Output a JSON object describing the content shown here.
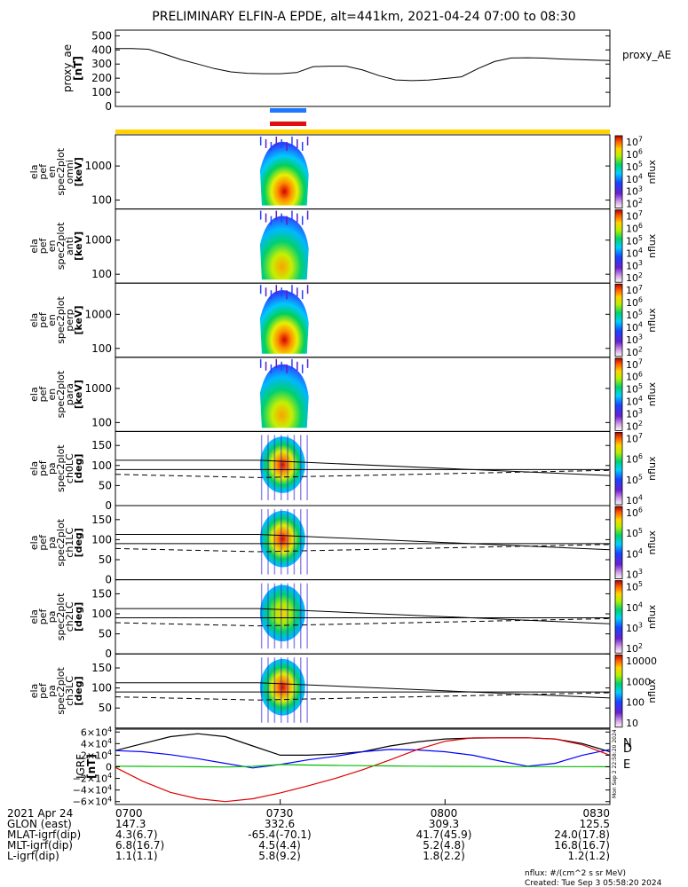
{
  "title": "PRELIMINARY ELFIN-A EPDE, alt=441km, 2021-04-24 07:00 to 08:30",
  "colors": {
    "axis": "#000000",
    "blue_bar": "#1e78ff",
    "red_bar": "#e01010",
    "yellow_bar": "#ffd200"
  },
  "chart_data": [
    {
      "type": "line",
      "panel": "proxy_ae",
      "ylabel_lines": [
        "proxy_ae",
        "[nT]"
      ],
      "legend": "proxy_AE",
      "yticks": [
        "500",
        "400",
        "300",
        "200",
        "100",
        "0"
      ],
      "ylim": [
        0,
        540
      ],
      "x_minutes": [
        0,
        3,
        6,
        9,
        12,
        15,
        18,
        21,
        24,
        27,
        30,
        33,
        36,
        39,
        42,
        45,
        48,
        51,
        54,
        57,
        60,
        63,
        66,
        69,
        72,
        75,
        78,
        81,
        84,
        87,
        90
      ],
      "values": [
        410,
        410,
        405,
        370,
        330,
        300,
        268,
        245,
        235,
        232,
        232,
        240,
        282,
        285,
        285,
        258,
        218,
        188,
        183,
        187,
        198,
        210,
        268,
        318,
        343,
        345,
        342,
        336,
        332,
        328,
        325
      ]
    },
    {
      "type": "heatmap",
      "panel": "en_omni",
      "ylabel_lines": [
        "ela",
        "pef",
        "en",
        "spec2plot",
        "omni",
        "[keV]"
      ],
      "yticks": [
        "1000",
        "100"
      ],
      "colorbar_ticks": [
        "10^7",
        "10^6",
        "10^5",
        "10^4",
        "10^3",
        "10^2"
      ],
      "colorbar_label": "nflux"
    },
    {
      "type": "heatmap",
      "panel": "en_anti",
      "ylabel_lines": [
        "ela",
        "pef",
        "en",
        "spec2plot",
        "anti",
        "[keV]"
      ],
      "yticks": [
        "1000",
        "100"
      ],
      "colorbar_ticks": [
        "10^7",
        "10^6",
        "10^5",
        "10^4",
        "10^3",
        "10^2"
      ],
      "colorbar_label": "nflux"
    },
    {
      "type": "heatmap",
      "panel": "en_perp",
      "ylabel_lines": [
        "ela",
        "pef",
        "en",
        "spec2plot",
        "perp",
        "[keV]"
      ],
      "yticks": [
        "1000",
        "100"
      ],
      "colorbar_ticks": [
        "10^7",
        "10^6",
        "10^5",
        "10^4",
        "10^3",
        "10^2"
      ],
      "colorbar_label": "nflux"
    },
    {
      "type": "heatmap",
      "panel": "en_para",
      "ylabel_lines": [
        "ela",
        "pef",
        "en",
        "spec2plot",
        "para",
        "[keV]"
      ],
      "yticks": [
        "1000",
        "100"
      ],
      "colorbar_ticks": [
        "10^7",
        "10^6",
        "10^5",
        "10^4",
        "10^3",
        "10^2"
      ],
      "colorbar_label": "nflux"
    },
    {
      "type": "heatmap",
      "panel": "pa_ch0",
      "ylabel_lines": [
        "ela",
        "pef",
        "pa",
        "spec2plot",
        "ch0LC",
        "[deg]"
      ],
      "yticks": [
        "150",
        "100",
        "50",
        "0"
      ],
      "colorbar_ticks": [
        "10^7",
        "10^6",
        "10^5",
        "10^4"
      ],
      "colorbar_label": "nflux"
    },
    {
      "type": "heatmap",
      "panel": "pa_ch1",
      "ylabel_lines": [
        "ela",
        "pef",
        "pa",
        "spec2plot",
        "ch1LC",
        "[deg]"
      ],
      "yticks": [
        "150",
        "100",
        "50",
        "0"
      ],
      "colorbar_ticks": [
        "10^6",
        "10^5",
        "10^4",
        "10^3"
      ],
      "colorbar_label": "nflux"
    },
    {
      "type": "heatmap",
      "panel": "pa_ch2",
      "ylabel_lines": [
        "ela",
        "pef",
        "pa",
        "spec2plot",
        "ch2LC",
        "[deg]"
      ],
      "yticks": [
        "150",
        "100",
        "50",
        "0"
      ],
      "colorbar_ticks": [
        "10^5",
        "10^4",
        "10^3",
        "10^2"
      ],
      "colorbar_label": "nflux"
    },
    {
      "type": "heatmap",
      "panel": "pa_ch3",
      "ylabel_lines": [
        "ela",
        "pef",
        "pa",
        "spec2plot",
        "ch3LC",
        "[deg]"
      ],
      "yticks": [
        "150",
        "100",
        "50"
      ],
      "colorbar_ticks": [
        "10000",
        "1000",
        "100",
        "10"
      ],
      "colorbar_label": "nflux"
    },
    {
      "type": "line",
      "panel": "igrf",
      "ylabel_lines": [
        "IGRF",
        "[nT]"
      ],
      "yticks": [
        "6×10^4",
        "4×10^4",
        "2×10^4",
        "0",
        "−2×10^4",
        "−4×10^4",
        "−6×10^4"
      ],
      "ylim": [
        -65000,
        65000
      ],
      "legend": [
        "N",
        "D",
        "E"
      ],
      "x_minutes": [
        0,
        5,
        10,
        15,
        20,
        25,
        30,
        35,
        40,
        45,
        50,
        55,
        60,
        65,
        70,
        75,
        80,
        85,
        90
      ],
      "series": [
        {
          "name": "black",
          "color": "#000000",
          "values": [
            28000,
            40000,
            52000,
            57000,
            52000,
            36000,
            20000,
            20000,
            22000,
            26000,
            36000,
            43000,
            48000,
            49500,
            50000,
            50000,
            48000,
            40000,
            26000
          ]
        },
        {
          "name": "blue",
          "color": "#0000ff",
          "values": [
            28000,
            26000,
            21000,
            14000,
            6000,
            -2000,
            4000,
            12000,
            18000,
            26000,
            30000,
            29000,
            26000,
            20000,
            10000,
            1000,
            6000,
            20000,
            30000
          ]
        },
        {
          "name": "red",
          "color": "#e00000",
          "values": [
            -1000,
            -25000,
            -44000,
            -55000,
            -60000,
            -55000,
            -45000,
            -33000,
            -20000,
            -5000,
            12000,
            30000,
            44000,
            50000,
            50000,
            50000,
            48000,
            38000,
            20000
          ]
        },
        {
          "name": "green",
          "color": "#00bb00",
          "values": [
            1000,
            800,
            500,
            200,
            -300,
            800,
            4000,
            3000,
            2500,
            2000,
            1500,
            1000,
            800,
            600,
            400,
            300,
            300,
            300,
            200
          ]
        }
      ]
    }
  ],
  "ephemeris": {
    "rows": [
      {
        "label": "2021 Apr 24",
        "values": [
          "0700",
          "0730",
          "0800",
          "0830"
        ]
      },
      {
        "label": "GLON (east)",
        "values": [
          "147.3",
          "332.6",
          "309.3",
          "125.5"
        ]
      },
      {
        "label": "MLAT-igrf(dip)",
        "values": [
          "4.3(6.7)",
          "-65.4(-70.1)",
          "41.7(45.9)",
          "24.0(17.8)"
        ]
      },
      {
        "label": "MLT-igrf(dip)",
        "values": [
          "6.8(16.7)",
          "4.5(4.4)",
          "5.2(4.8)",
          "16.8(16.7)"
        ]
      },
      {
        "label": "L-igrf(dip)",
        "values": [
          "1.1(1.1)",
          "5.8(9.2)",
          "1.8(2.2)",
          "1.2(1.2)"
        ]
      }
    ]
  },
  "footer": {
    "units": "nflux: #/(cm^2 s sr MeV)",
    "created": "Created: Tue Sep  3 05:58:20 2024",
    "side_stamp": "Mon Sep  2 22:58:20 2024"
  }
}
